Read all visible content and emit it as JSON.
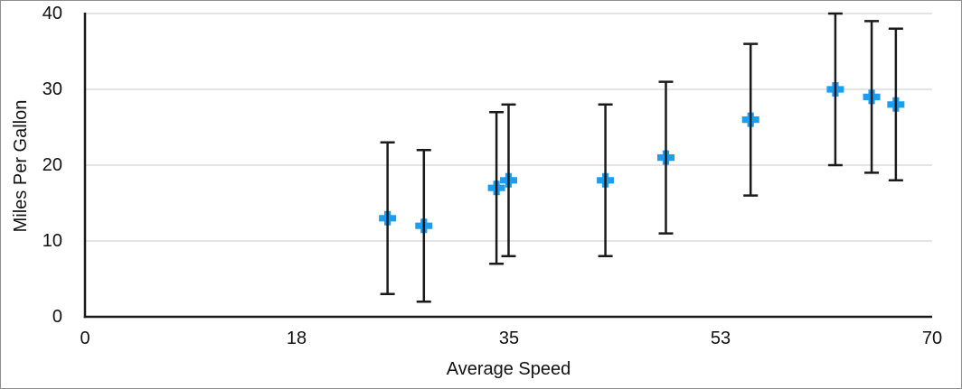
{
  "window": {
    "background": "#ffffff",
    "frame_border_color": "#8e8e8e"
  },
  "chart_data": {
    "type": "scatter",
    "xlabel": "Average Speed",
    "ylabel": "Miles Per Gallon",
    "xlim": [
      0,
      70
    ],
    "ylim": [
      0,
      40
    ],
    "x_ticks": [
      0,
      17.5,
      35,
      52.5,
      70
    ],
    "x_tick_labels": [
      "0",
      "18",
      "35",
      "53",
      "70"
    ],
    "y_ticks": [
      0,
      10,
      20,
      30,
      40
    ],
    "y_tick_labels": [
      "0",
      "10",
      "20",
      "30",
      "40"
    ],
    "grid": "horizontal-only",
    "legend": "none",
    "series": [
      {
        "name": "Miles Per Gallon",
        "marker": "plus",
        "color": "#1b9df2",
        "x": [
          25,
          28,
          34,
          35,
          43,
          48,
          55,
          62,
          65,
          67
        ],
        "y": [
          13,
          12,
          17,
          18,
          18,
          21,
          26,
          30,
          29,
          28
        ],
        "error_bars": {
          "axis": "y",
          "mode": "fixed",
          "value": 10,
          "direction": "both"
        }
      }
    ],
    "colors": {
      "marker": "#1b9df2",
      "error_bar": "#1a1a1a",
      "axis_line": "#1a1a1a",
      "gridline": "#dcdcdc",
      "text": "#111111"
    }
  }
}
